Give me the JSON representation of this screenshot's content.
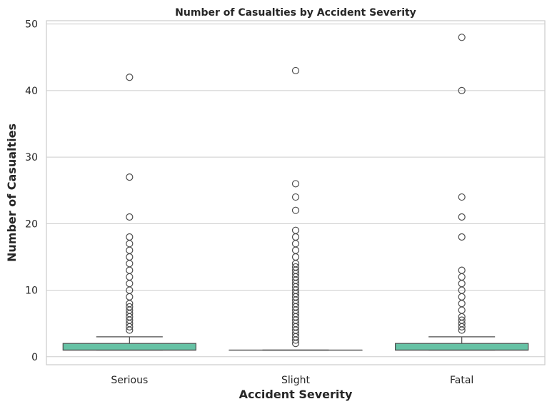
{
  "chart_data": {
    "type": "box",
    "title": "Number of Casualties by Accident Severity",
    "xlabel": "Accident Severity",
    "ylabel": "Number of Casualties",
    "categories": [
      "Serious",
      "Slight",
      "Fatal"
    ],
    "ylim": [
      -1.2,
      50.5
    ],
    "yticks": [
      0,
      10,
      20,
      30,
      40,
      50
    ],
    "grid": "horizontal",
    "box_color": "#66c2a5",
    "line_color": "#4d4d4d",
    "boxes": [
      {
        "category": "Serious",
        "whisker_low": 1,
        "q1": 1,
        "median": 1,
        "q3": 2,
        "whisker_high": 3,
        "outliers": [
          4,
          4.5,
          5,
          5.5,
          6,
          6.5,
          7,
          7.5,
          8,
          9,
          10,
          11,
          12,
          13,
          14,
          15,
          16,
          17,
          18,
          21,
          27,
          42
        ]
      },
      {
        "category": "Slight",
        "whisker_low": 1,
        "q1": 1,
        "median": 1,
        "q3": 1,
        "whisker_high": 1,
        "outliers": [
          2,
          2.5,
          3,
          3.5,
          4,
          4.5,
          5,
          5.5,
          6,
          6.5,
          7,
          7.5,
          8,
          8.5,
          9,
          9.5,
          10,
          10.5,
          11,
          11.5,
          12,
          12.5,
          13,
          13.5,
          14,
          15,
          16,
          17,
          18,
          19,
          22,
          24,
          26,
          43
        ]
      },
      {
        "category": "Fatal",
        "whisker_low": 1,
        "q1": 1,
        "median": 1,
        "q3": 2,
        "whisker_high": 3,
        "outliers": [
          4,
          4.5,
          5,
          5.5,
          6,
          7,
          8,
          9,
          10,
          11,
          12,
          13,
          18,
          21,
          24,
          40,
          48
        ]
      }
    ]
  }
}
